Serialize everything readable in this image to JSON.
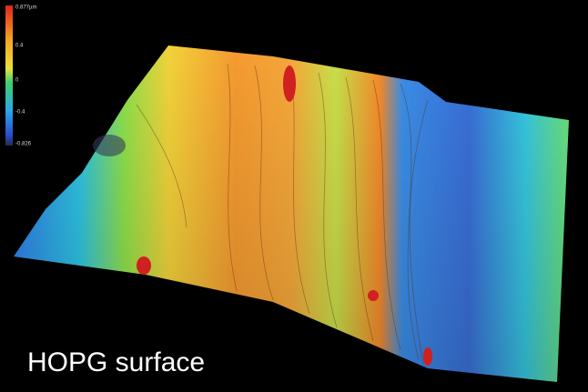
{
  "colorbar": {
    "labels": [
      "0.877µm",
      "0.4",
      "0",
      "-0.4",
      "-0.826"
    ]
  },
  "caption": "HOPG surface"
}
